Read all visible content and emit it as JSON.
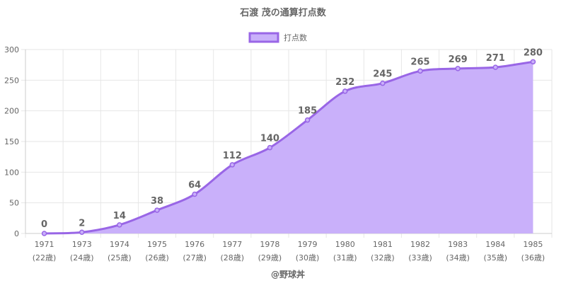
{
  "chart_data": {
    "type": "area",
    "title": "石渡 茂の通算打点数",
    "legend": {
      "label": "打点数",
      "placement": "top-center"
    },
    "categories": [
      "1971",
      "1973",
      "1974",
      "1975",
      "1976",
      "1977",
      "1978",
      "1979",
      "1980",
      "1981",
      "1982",
      "1983",
      "1984",
      "1985"
    ],
    "category_sublabels": [
      "(22歳)",
      "(24歳)",
      "(25歳)",
      "(26歳)",
      "(27歳)",
      "(28歳)",
      "(29歳)",
      "(30歳)",
      "(31歳)",
      "(32歳)",
      "(33歳)",
      "(34歳)",
      "(35歳)",
      "(36歳)"
    ],
    "series": [
      {
        "name": "打点数",
        "values": [
          0,
          2,
          14,
          38,
          64,
          112,
          140,
          185,
          232,
          245,
          265,
          269,
          271,
          280
        ]
      }
    ],
    "ylim": [
      0,
      300
    ],
    "yticks": [
      0,
      50,
      100,
      150,
      200,
      250,
      300
    ],
    "grid": true,
    "colors": {
      "line": "#9966e6",
      "fill": "#c9b0fa",
      "grid": "#e6e6e6",
      "text": "#666666"
    }
  },
  "credit": "@野球丼"
}
